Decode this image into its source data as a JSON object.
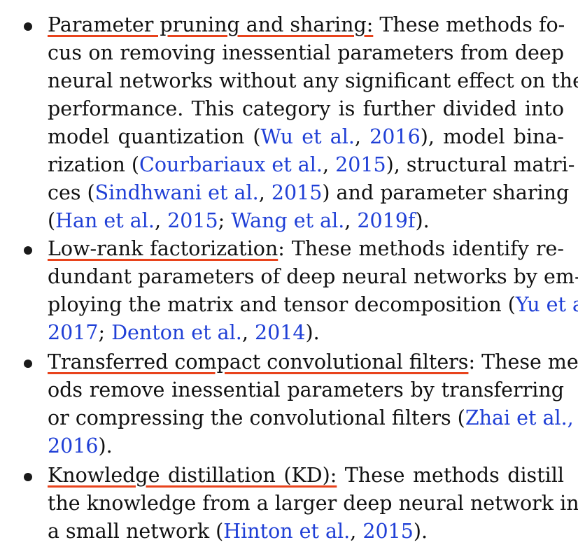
{
  "items": [
    {
      "term": "Parameter pruning and sharing:",
      "lines": [
        {
          "before": "",
          "after": " These methods fo-"
        },
        {
          "text": "cus on removing inessential parameters from deep"
        },
        {
          "text": "neural networks without any significant effect on the"
        },
        {
          "text": "performance. This category is further divided into"
        },
        {
          "a": "model quantization (",
          "c1": "Wu et al.",
          "b": ", ",
          "c2": "2016",
          "d": "), model bina-"
        },
        {
          "a": "rization (",
          "c1": "Courbariaux et al.",
          "b": ", ",
          "c2": "2015",
          "d": "), structural matri-"
        },
        {
          "a": "ces (",
          "c1": "Sindhwani et al.",
          "b": ", ",
          "c2": "2015",
          "d": ") and parameter sharing"
        },
        {
          "a": "(",
          "c1": "Han et al.",
          "b": ", ",
          "c2": "2015",
          "e": "; ",
          "c3": "Wang et al.",
          "f": ", ",
          "c4": "2019f",
          "d": ")."
        }
      ]
    },
    {
      "term": "Low-rank factorization",
      "lines": [
        {
          "after": ": These methods identify re-"
        },
        {
          "text": "dundant parameters of deep neural networks by em-"
        },
        {
          "a": "ploying the matrix and tensor decomposition (",
          "c1": "Yu et al."
        },
        {
          "c1": "2017",
          "e": "; ",
          "c3": "Denton et al.",
          "f": ", ",
          "c4": "2014",
          "d": ")."
        }
      ]
    },
    {
      "term": "Transferred compact convolutional filters",
      "lines": [
        {
          "after": ": These meth-"
        },
        {
          "text": "ods remove inessential parameters by transferring"
        },
        {
          "a": "or compressing the convolutional filters (",
          "c1": "Zhai et al.,"
        },
        {
          "c1": "2016",
          "d": ")."
        }
      ]
    },
    {
      "term": "Knowledge distillation (KD):",
      "lines": [
        {
          "after": " These methods distill"
        },
        {
          "text": "the knowledge from a larger deep neural network into"
        },
        {
          "a": "a small network (",
          "c1": "Hinton et al.",
          "b": ", ",
          "c2": "2015",
          "d": ")."
        }
      ]
    }
  ]
}
